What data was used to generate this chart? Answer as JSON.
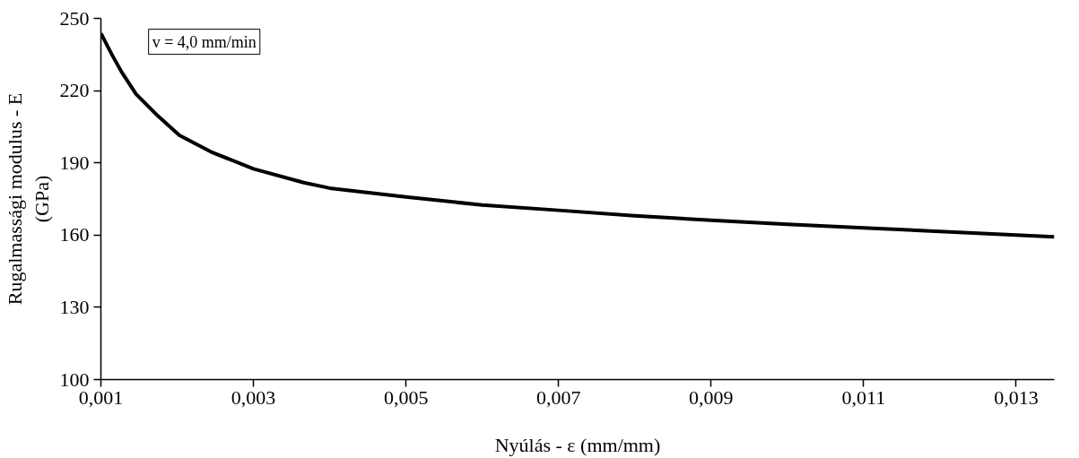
{
  "chart_data": {
    "type": "line",
    "xlabel": "Nyúlás - ε (mm/mm)",
    "ylabel": "Rugalmassági modulus - E\n(GPa)",
    "annotations": [
      "v = 4,0 mm/min"
    ],
    "x": [
      0.001,
      0.00115,
      0.00127,
      0.00146,
      0.00175,
      0.00203,
      0.00244,
      0.003,
      0.00366,
      0.004,
      0.005,
      0.006,
      0.007,
      0.008,
      0.009,
      0.01,
      0.011,
      0.012,
      0.013,
      0.0135
    ],
    "series": [
      {
        "color": "#000000",
        "values": [
          243.8,
          234.6,
          227.8,
          218.6,
          209.4,
          201.4,
          194.6,
          187.5,
          181.8,
          179.5,
          175.8,
          172.5,
          170.3,
          168,
          166.2,
          164.5,
          163,
          161.5,
          160,
          159.3
        ]
      }
    ],
    "xlim": [
      0.001,
      0.0135
    ],
    "ylim": [
      100,
      250
    ],
    "xticks": [
      {
        "value": 0.001,
        "label": "0,001"
      },
      {
        "value": 0.003,
        "label": "0,003"
      },
      {
        "value": 0.005,
        "label": "0,005"
      },
      {
        "value": 0.007,
        "label": "0,007"
      },
      {
        "value": 0.009,
        "label": "0,009"
      },
      {
        "value": 0.011,
        "label": "0,011"
      },
      {
        "value": 0.013,
        "label": "0,013"
      }
    ],
    "yticks": [
      100,
      130,
      160,
      190,
      220,
      250
    ],
    "grid": false,
    "marker": "none",
    "line_style": "solid"
  }
}
